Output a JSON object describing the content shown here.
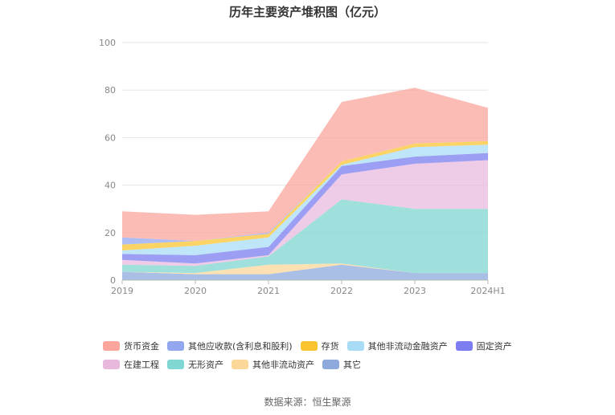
{
  "chart_data": {
    "type": "area",
    "stacked": true,
    "title": "历年主要资产堆积图（亿元）",
    "categories": [
      "2019",
      "2020",
      "2021",
      "2022",
      "2023",
      "2024H1"
    ],
    "ylim": [
      0,
      100
    ],
    "yticks": [
      0,
      20,
      40,
      60,
      80,
      100
    ],
    "grid": true,
    "legend_position": "bottom",
    "series": [
      {
        "name": "其它",
        "color": "#8eaadc",
        "values": [
          3.5,
          2.5,
          2.5,
          6.5,
          3.0,
          3.0
        ]
      },
      {
        "name": "其他非流动资产",
        "color": "#fcd79a",
        "values": [
          0.0,
          0.5,
          4.0,
          0.5,
          0.0,
          0.0
        ]
      },
      {
        "name": "无形资产",
        "color": "#7fd6d2",
        "values": [
          3.0,
          3.0,
          3.5,
          27.0,
          27.0,
          27.0
        ]
      },
      {
        "name": "在建工程",
        "color": "#e8b9dd",
        "values": [
          2.0,
          1.0,
          0.5,
          10.5,
          19.0,
          20.5
        ]
      },
      {
        "name": "固定资产",
        "color": "#7b7df0",
        "values": [
          2.5,
          3.5,
          3.5,
          3.5,
          3.0,
          3.0
        ]
      },
      {
        "name": "其他非流动金融资产",
        "color": "#a8dcf6",
        "values": [
          1.5,
          4.0,
          4.0,
          0.5,
          4.0,
          3.5
        ]
      },
      {
        "name": "存货",
        "color": "#fbc531",
        "values": [
          2.5,
          2.0,
          1.5,
          1.5,
          1.5,
          1.5
        ]
      },
      {
        "name": "其他应收款(含利息和股利)",
        "color": "#93a7f0",
        "values": [
          3.0,
          0.0,
          0.5,
          0.0,
          0.0,
          0.0
        ]
      },
      {
        "name": "货币资金",
        "color": "#fba59d",
        "values": [
          11.0,
          11.0,
          9.0,
          25.0,
          23.5,
          14.0
        ]
      }
    ],
    "legend_order": [
      "货币资金",
      "其他应收款(含利息和股利)",
      "存货",
      "其他非流动金融资产",
      "固定资产",
      "在建工程",
      "无形资产",
      "其他非流动资产",
      "其它"
    ]
  },
  "source": "数据来源：恒生聚源"
}
